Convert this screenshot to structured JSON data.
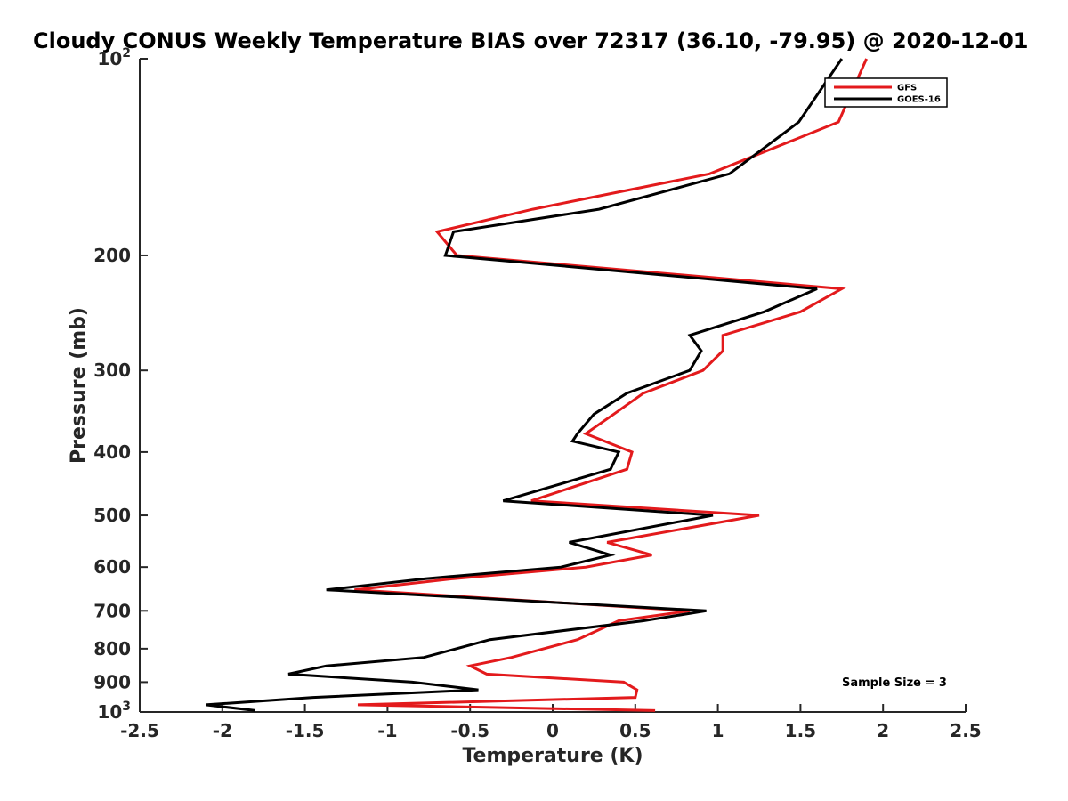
{
  "chart_data": {
    "type": "line",
    "title": "Cloudy CONUS Weekly Temperature BIAS over 72317 (36.10, -79.95) @ 2020-12-01",
    "xlabel": "Temperature (K)",
    "ylabel": "Pressure (mb)",
    "xlim": [
      -2.5,
      2.5
    ],
    "ylim": [
      100,
      1000
    ],
    "y_scale": "log",
    "y_reversed": true,
    "grid": false,
    "x_ticks": [
      {
        "value": -2.5,
        "label": "-2.5"
      },
      {
        "value": -2,
        "label": "-2"
      },
      {
        "value": -1.5,
        "label": "-1.5"
      },
      {
        "value": -1,
        "label": "-1"
      },
      {
        "value": -0.5,
        "label": "-0.5"
      },
      {
        "value": 0,
        "label": "0"
      },
      {
        "value": 0.5,
        "label": "0.5"
      },
      {
        "value": 1,
        "label": "1"
      },
      {
        "value": 1.5,
        "label": "1.5"
      },
      {
        "value": 2,
        "label": "2"
      },
      {
        "value": 2.5,
        "label": "2.5"
      }
    ],
    "y_ticks": [
      {
        "value": 100,
        "base": "10",
        "exp": "2"
      },
      {
        "value": 200,
        "label": "200"
      },
      {
        "value": 300,
        "label": "300"
      },
      {
        "value": 400,
        "label": "400"
      },
      {
        "value": 500,
        "label": "500"
      },
      {
        "value": 600,
        "label": "600"
      },
      {
        "value": 700,
        "label": "700"
      },
      {
        "value": 800,
        "label": "800"
      },
      {
        "value": 900,
        "label": "900"
      },
      {
        "value": 1000,
        "base": "10",
        "exp": "3"
      }
    ],
    "legend_position": "top-right",
    "series": [
      {
        "name": "GFS",
        "color": "#e31a1c",
        "points": [
          [
            1.9,
            100
          ],
          [
            1.73,
            125
          ],
          [
            0.95,
            150
          ],
          [
            -0.12,
            170
          ],
          [
            -0.7,
            184
          ],
          [
            -0.58,
            200
          ],
          [
            1.75,
            225
          ],
          [
            1.5,
            244
          ],
          [
            1.03,
            265
          ],
          [
            1.03,
            280
          ],
          [
            0.91,
            300
          ],
          [
            0.55,
            325
          ],
          [
            0.37,
            350
          ],
          [
            0.2,
            375
          ],
          [
            0.48,
            400
          ],
          [
            0.45,
            425
          ],
          [
            -0.13,
            475
          ],
          [
            1.25,
            500
          ],
          [
            0.33,
            550
          ],
          [
            0.6,
            575
          ],
          [
            0.2,
            600
          ],
          [
            -0.6,
            625
          ],
          [
            -1.2,
            650
          ],
          [
            0.83,
            700
          ],
          [
            0.4,
            725
          ],
          [
            0.15,
            775
          ],
          [
            -0.25,
            825
          ],
          [
            -0.5,
            850
          ],
          [
            -0.4,
            875
          ],
          [
            0.43,
            900
          ],
          [
            0.51,
            925
          ],
          [
            0.5,
            950
          ],
          [
            -1.18,
            975
          ],
          [
            0.62,
            995
          ]
        ]
      },
      {
        "name": "GOES-16",
        "color": "#000000",
        "points": [
          [
            1.75,
            100
          ],
          [
            1.49,
            125
          ],
          [
            1.07,
            150
          ],
          [
            0.28,
            170
          ],
          [
            -0.6,
            184
          ],
          [
            -0.65,
            200
          ],
          [
            1.6,
            225
          ],
          [
            1.28,
            244
          ],
          [
            0.83,
            265
          ],
          [
            0.9,
            280
          ],
          [
            0.83,
            300
          ],
          [
            0.45,
            325
          ],
          [
            0.25,
            350
          ],
          [
            0.15,
            375
          ],
          [
            0.12,
            385
          ],
          [
            0.4,
            400
          ],
          [
            0.35,
            425
          ],
          [
            -0.3,
            475
          ],
          [
            0.97,
            500
          ],
          [
            0.1,
            550
          ],
          [
            0.35,
            575
          ],
          [
            0.05,
            600
          ],
          [
            -0.77,
            625
          ],
          [
            -1.37,
            650
          ],
          [
            0.93,
            700
          ],
          [
            0.55,
            725
          ],
          [
            -0.38,
            775
          ],
          [
            -0.78,
            825
          ],
          [
            -1.37,
            850
          ],
          [
            -1.6,
            875
          ],
          [
            -0.85,
            900
          ],
          [
            -0.45,
            925
          ],
          [
            -1.45,
            950
          ],
          [
            -2.1,
            975
          ],
          [
            -1.8,
            995
          ]
        ]
      }
    ],
    "annotation": "Sample Size = 3"
  }
}
